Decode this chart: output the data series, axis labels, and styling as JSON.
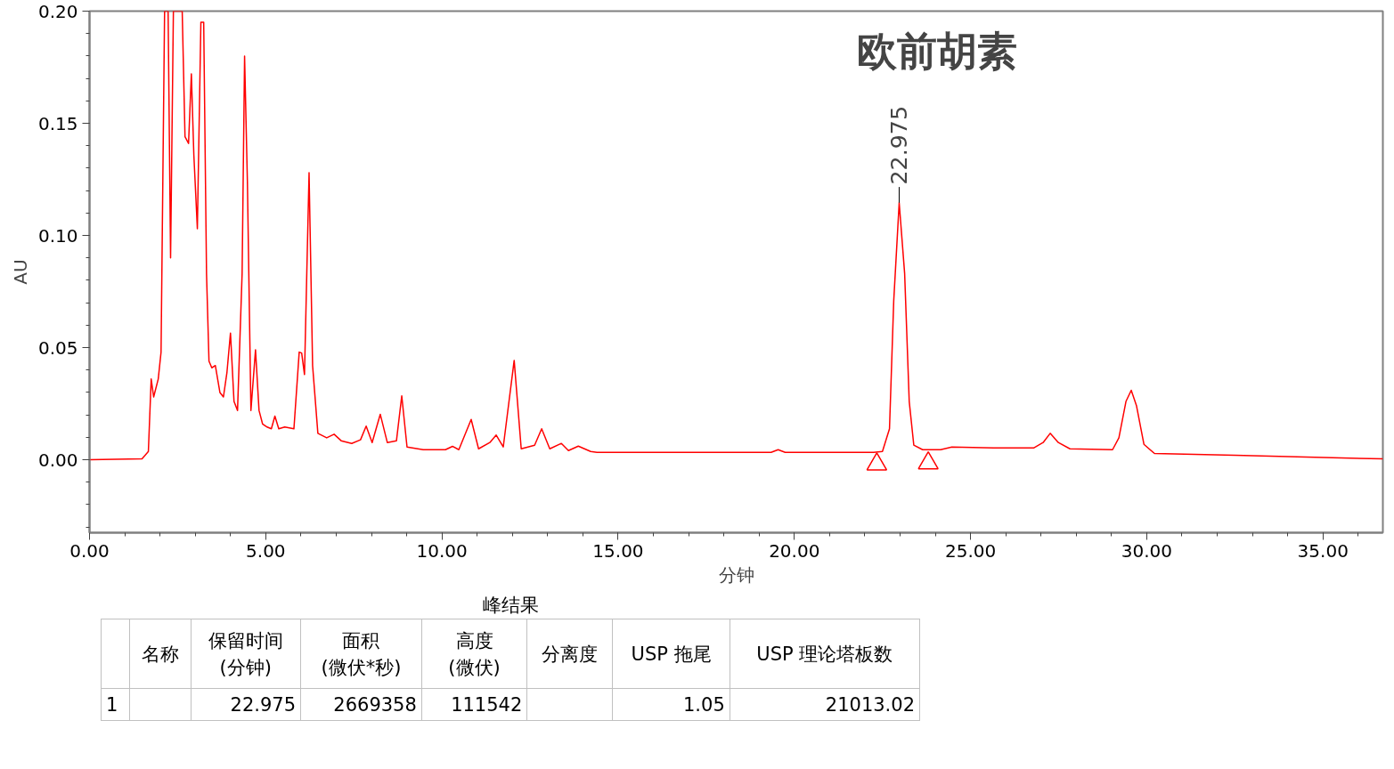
{
  "chart_data": {
    "type": "line",
    "title": "欧前胡素",
    "xlabel": "分钟",
    "ylabel": "AU",
    "xlim": [
      0,
      36.7
    ],
    "ylim": [
      -0.0325,
      0.2
    ],
    "xticks": [
      {
        "value": 0,
        "label": "0.00"
      },
      {
        "value": 5,
        "label": "5.00"
      },
      {
        "value": 10,
        "label": "10.00"
      },
      {
        "value": 15,
        "label": "15.00"
      },
      {
        "value": 20,
        "label": "20.00"
      },
      {
        "value": 25,
        "label": "25.00"
      },
      {
        "value": 30,
        "label": "30.00"
      },
      {
        "value": 35,
        "label": "35.00"
      }
    ],
    "yticks": [
      {
        "value": 0,
        "label": "0.00"
      },
      {
        "value": 0.05,
        "label": "0.05"
      },
      {
        "value": 0.1,
        "label": "0.10"
      },
      {
        "value": 0.15,
        "label": "0.15"
      },
      {
        "value": 0.2,
        "label": "0.20"
      }
    ],
    "grid": false,
    "series": [
      {
        "color": "#ff0000",
        "x": [
          0,
          1.49,
          1.67,
          1.75,
          1.82,
          1.95,
          2.03,
          2.08,
          2.13,
          2.23,
          2.3,
          2.38,
          2.63,
          2.71,
          2.81,
          2.89,
          2.96,
          3.06,
          3.16,
          3.24,
          3.32,
          3.39,
          3.47,
          3.57,
          3.7,
          3.8,
          3.9,
          4.0,
          4.1,
          4.2,
          4.33,
          4.4,
          4.48,
          4.58,
          4.71,
          4.81,
          4.91,
          5.04,
          5.16,
          5.26,
          5.37,
          5.54,
          5.8,
          5.95,
          6.02,
          6.1,
          6.23,
          6.33,
          6.48,
          6.73,
          6.94,
          7.14,
          7.44,
          7.69,
          7.85,
          8.02,
          8.25,
          8.45,
          8.71,
          8.86,
          9.01,
          9.47,
          10.1,
          10.3,
          10.48,
          10.83,
          11.04,
          11.36,
          11.54,
          11.74,
          12.05,
          12.25,
          12.63,
          12.83,
          13.06,
          13.39,
          13.59,
          13.87,
          14.22,
          14.4,
          17.57,
          19.34,
          19.54,
          19.74,
          22.25,
          22.5,
          22.7,
          22.82,
          22.975,
          23.13,
          23.26,
          23.39,
          23.64,
          24.15,
          24.47,
          25.66,
          26.8,
          27.06,
          27.26,
          27.49,
          27.82,
          29.03,
          29.21,
          29.41,
          29.56,
          29.71,
          29.92,
          30.22,
          32.5,
          36.7
        ],
        "values": [
          0,
          0.0004,
          0.0037,
          0.036,
          0.028,
          0.036,
          0.048,
          0.124,
          0.2,
          0.2,
          0.09,
          0.2,
          0.2,
          0.144,
          0.141,
          0.172,
          0.136,
          0.103,
          0.195,
          0.195,
          0.083,
          0.044,
          0.041,
          0.042,
          0.03,
          0.028,
          0.039,
          0.0565,
          0.026,
          0.022,
          0.083,
          0.18,
          0.124,
          0.022,
          0.049,
          0.022,
          0.016,
          0.0146,
          0.0138,
          0.0195,
          0.0138,
          0.0146,
          0.0138,
          0.048,
          0.0476,
          0.038,
          0.128,
          0.042,
          0.0118,
          0.0098,
          0.0114,
          0.0085,
          0.0073,
          0.0089,
          0.015,
          0.0077,
          0.0203,
          0.0077,
          0.0085,
          0.0285,
          0.0057,
          0.0045,
          0.0045,
          0.006,
          0.0045,
          0.018,
          0.0049,
          0.0077,
          0.011,
          0.0057,
          0.0443,
          0.0049,
          0.0065,
          0.0138,
          0.0049,
          0.0073,
          0.0041,
          0.0061,
          0.0037,
          0.0033,
          0.0033,
          0.0033,
          0.0045,
          0.0033,
          0.0033,
          0.0037,
          0.0138,
          0.0707,
          0.1146,
          0.083,
          0.026,
          0.0065,
          0.0045,
          0.0045,
          0.0057,
          0.0053,
          0.0053,
          0.0077,
          0.0118,
          0.0077,
          0.0049,
          0.0045,
          0.0098,
          0.026,
          0.031,
          0.024,
          0.0069,
          0.0028,
          0.002,
          0.0004
        ]
      },
      {
        "type": "scatter",
        "marker": "triangle",
        "color": "#ff0000",
        "x": [
          22.34,
          23.8
        ],
        "values": [
          -0.002,
          -0.0015
        ]
      }
    ],
    "annotations": [
      {
        "text": "22.975",
        "x": 22.975,
        "y": 0.1146
      },
      "峰结果",
      null,
      "名称",
      "保留时间\n(分钟)",
      "面积\n(微伏*秒)",
      "高度\n(微伏)",
      "分离度",
      "USP 拖尾",
      "USP 理论塔板数",
      "1",
      null,
      "22.975",
      "2669358",
      "111542",
      null,
      "1.05",
      "21013.02"
    ]
  }
}
